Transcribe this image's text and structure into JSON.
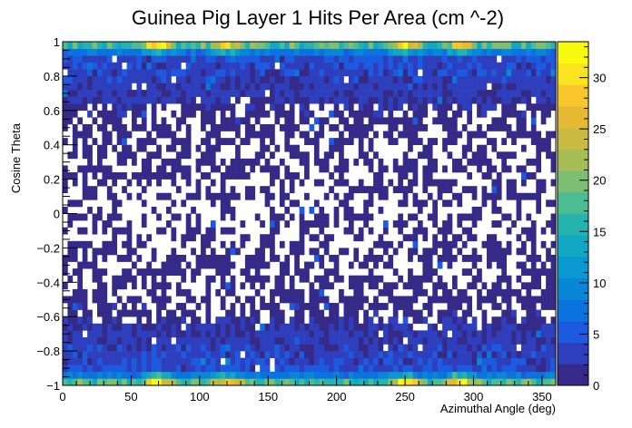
{
  "chart_data": {
    "type": "heatmap",
    "title": "Guinea Pig Layer 1 Hits Per Area (cm ^-2)",
    "xlabel": "Azimuthal Angle (deg)",
    "ylabel": "Cosine Theta",
    "xlim": [
      0,
      360
    ],
    "ylim": [
      -1,
      1
    ],
    "x_ticks": [
      0,
      50,
      100,
      150,
      200,
      250,
      300,
      350
    ],
    "x_tick_labels": [
      "0",
      "50",
      "100",
      "150",
      "200",
      "250",
      "300",
      "350"
    ],
    "y_ticks": [
      -1,
      -0.8,
      -0.6,
      -0.4,
      -0.2,
      0,
      0.2,
      0.4,
      0.6,
      0.8,
      1
    ],
    "y_tick_labels": [
      "−1",
      "−0.8",
      "−0.6",
      "−0.4",
      "−0.2",
      "0",
      "0.2",
      "0.4",
      "0.6",
      "0.8",
      "1"
    ],
    "zlim": [
      0,
      33.5
    ],
    "z_ticks": [
      0,
      5,
      10,
      15,
      20,
      25,
      30
    ],
    "z_tick_labels": [
      "0",
      "5",
      "10",
      "15",
      "20",
      "25",
      "30"
    ],
    "bins": {
      "x": 100,
      "y": 50
    },
    "grid": false,
    "colorbar": "right",
    "hot_spots_phi_deg": [
      70,
      120,
      250,
      290
    ],
    "band_profile": [
      {
        "cos_theta": -0.98,
        "mean": 17
      },
      {
        "cos_theta": -0.94,
        "mean": 8
      },
      {
        "cos_theta": -0.9,
        "mean": 4
      },
      {
        "cos_theta": -0.6,
        "mean": 1.3
      },
      {
        "cos_theta": 0.0,
        "mean": 0.6
      },
      {
        "cos_theta": 0.6,
        "mean": 1.3
      },
      {
        "cos_theta": 0.9,
        "mean": 4
      },
      {
        "cos_theta": 0.94,
        "mean": 8
      },
      {
        "cos_theta": 0.98,
        "mean": 17
      }
    ],
    "palette": [
      "#352a87",
      "#2e3fbe",
      "#1c5be0",
      "#0b73de",
      "#0a86d7",
      "#0a98d0",
      "#10a8c2",
      "#27b3ad",
      "#4cbc91",
      "#7abf72",
      "#a6be55",
      "#c9bb41",
      "#e6b932",
      "#f9c72b",
      "#f9e41f",
      "#f9fb0e"
    ]
  }
}
